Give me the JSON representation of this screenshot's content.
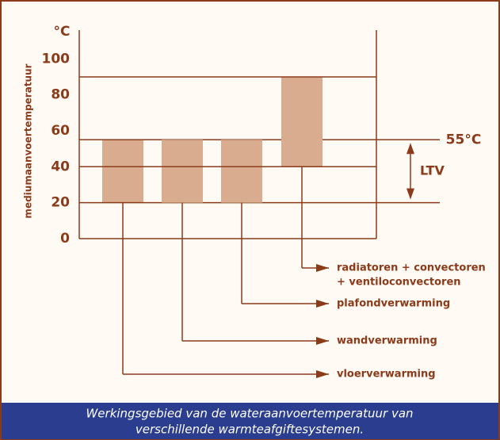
{
  "chart_data": {
    "type": "range_bar",
    "y_unit": "°C",
    "ylabel": "mediumaanvoertemperatuur",
    "categories": [
      "vloerverwarming",
      "wandverwarming",
      "plafondverwarming",
      [
        "radiatoren + convectoren",
        "+ ventiloconvectoren"
      ]
    ],
    "low_values": [
      20,
      20,
      20,
      40
    ],
    "high_values": [
      55,
      55,
      55,
      90
    ],
    "color": "#d9ab8f",
    "line_color": "#8b3a1a",
    "ylim": [
      0,
      116
    ],
    "yticks": [
      0,
      20,
      40,
      60,
      80,
      100
    ],
    "reference_line": {
      "value": 55,
      "label": "55°C"
    },
    "ltv": {
      "label": "LTV",
      "range": [
        20,
        55
      ]
    },
    "caption": [
      "Werkingsgebied van de wateraanvoertemperatuur van",
      "verschillende warmteafgiftesystemen."
    ]
  }
}
